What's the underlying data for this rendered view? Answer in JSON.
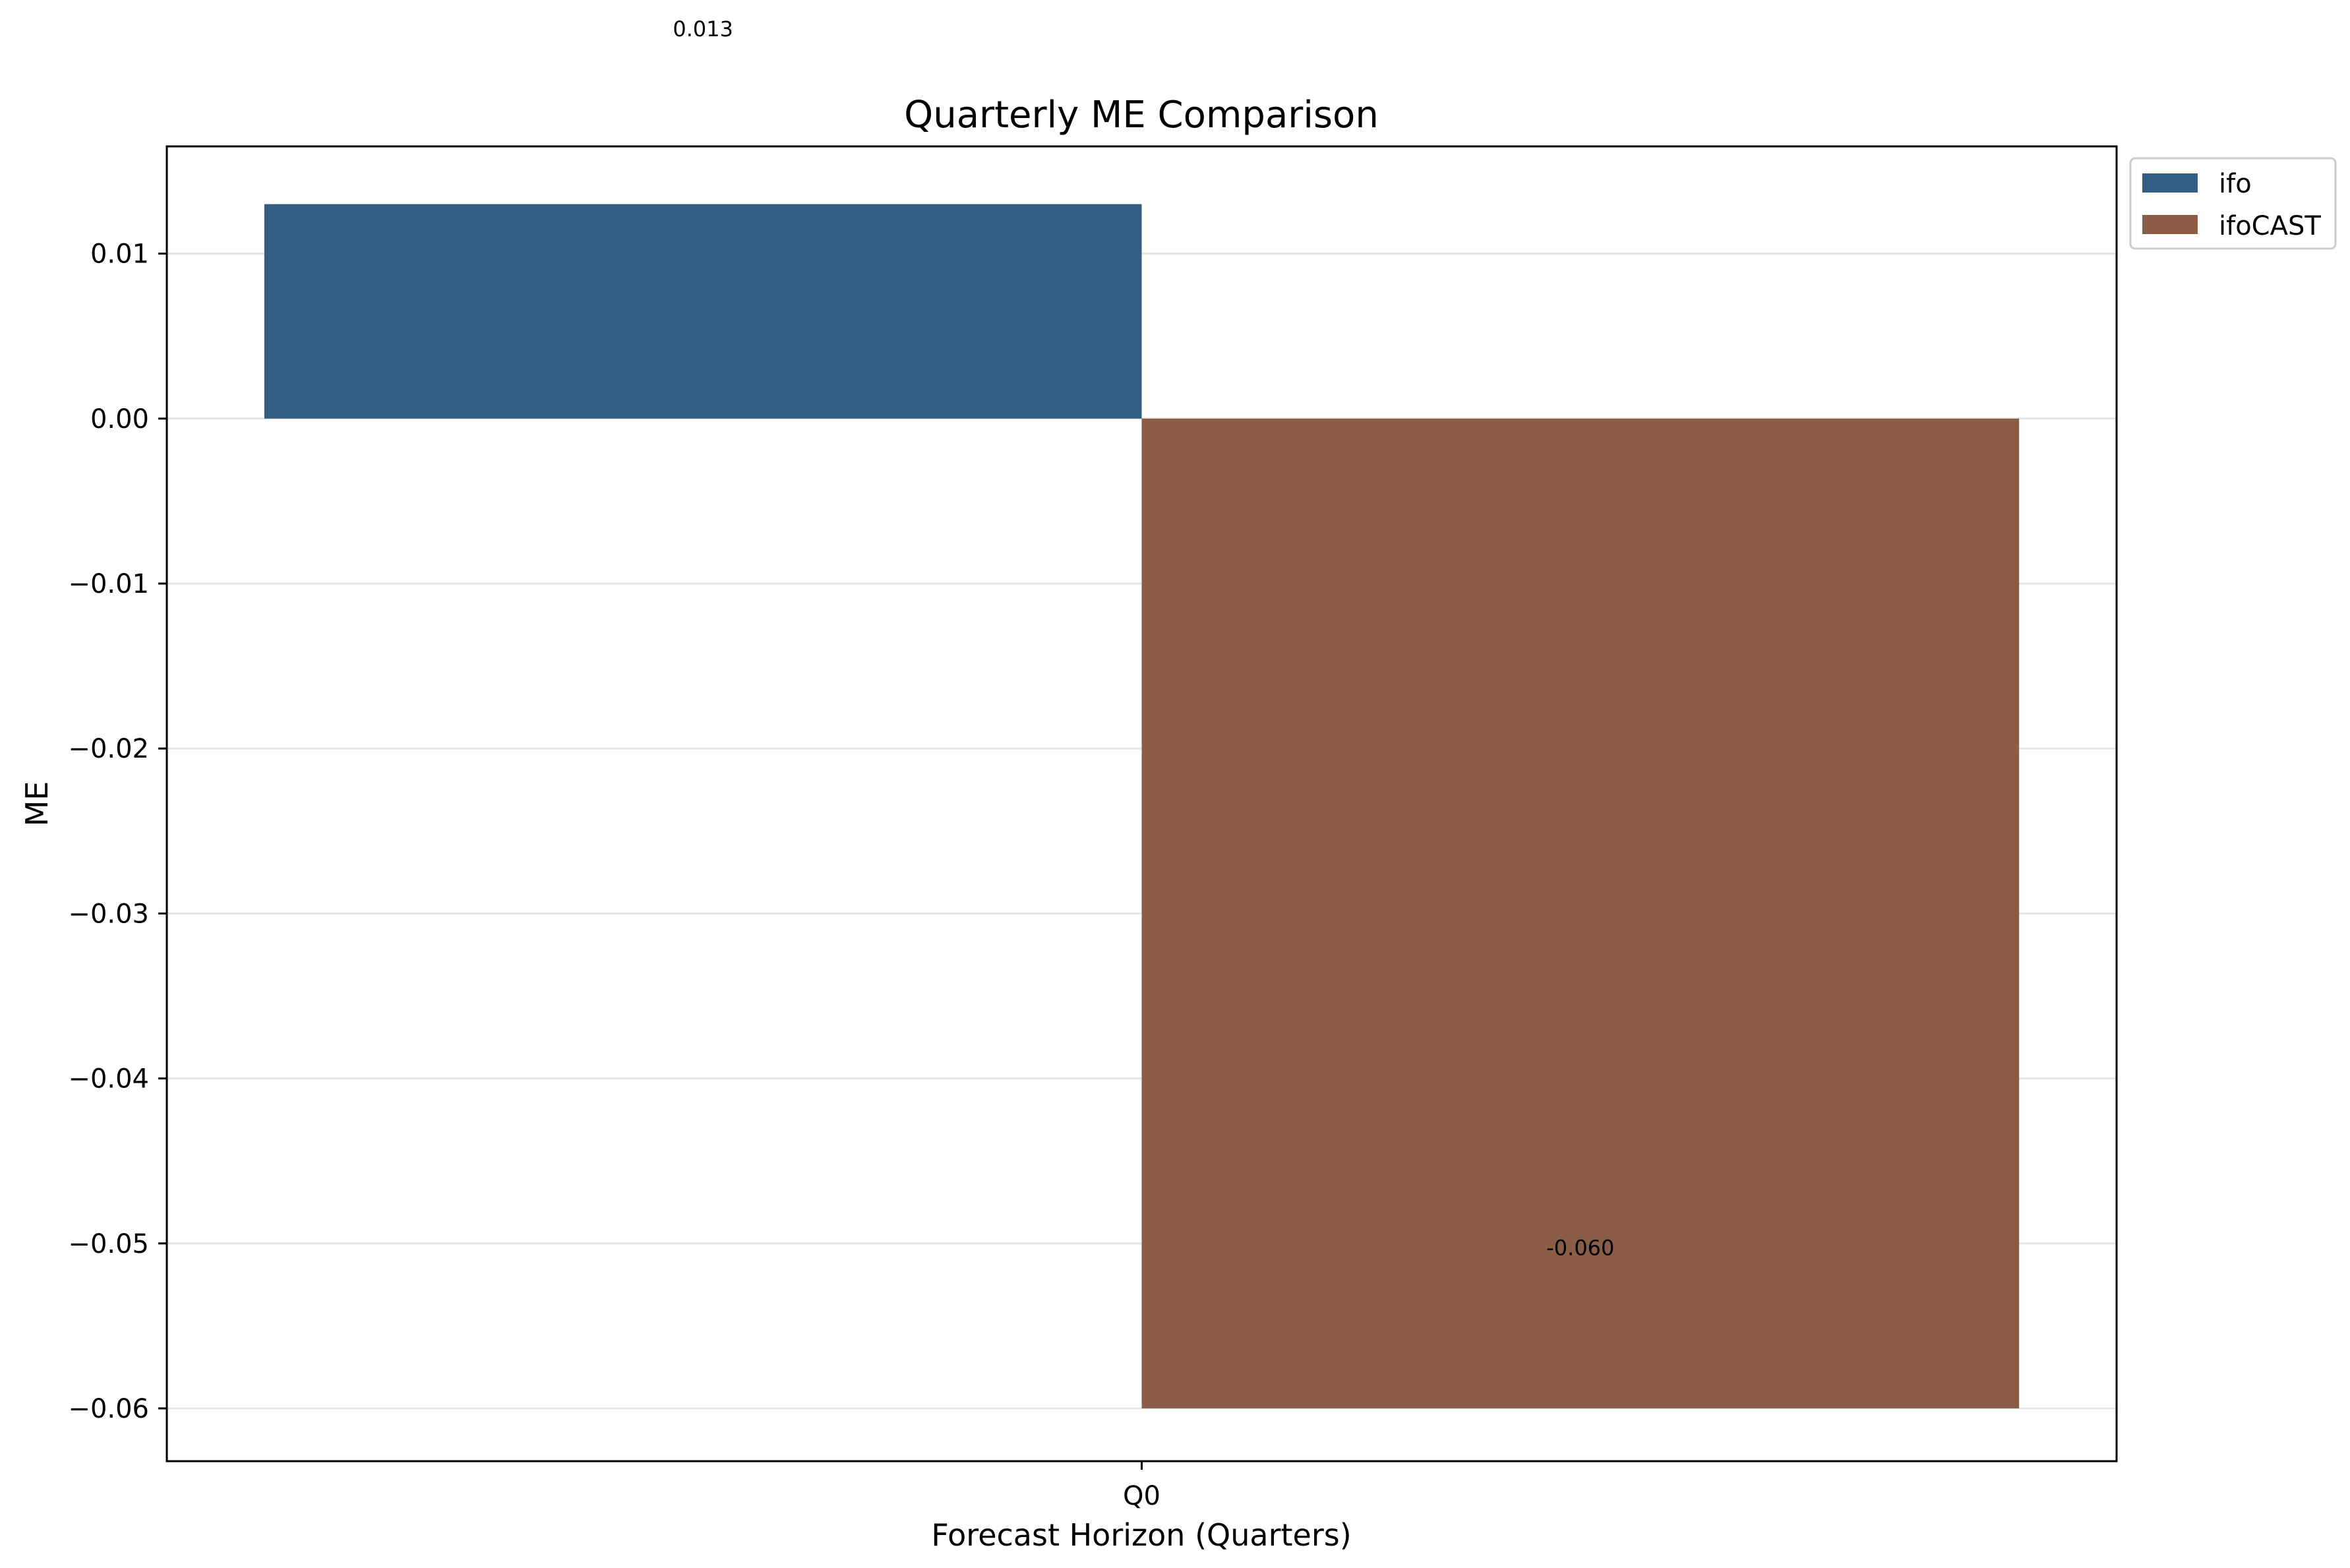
{
  "chart_data": {
    "type": "bar",
    "title": "Quarterly ME Comparison",
    "xlabel": "Forecast Horizon (Quarters)",
    "ylabel": "ME",
    "categories": [
      "Q0"
    ],
    "series": [
      {
        "name": "ifo",
        "values": [
          0.013
        ],
        "color": "#335d83",
        "data_label": "0.013"
      },
      {
        "name": "ifoCAST",
        "values": [
          -0.06
        ],
        "color": "#8b5d47",
        "data_label": "-0.060"
      }
    ],
    "ylim": [
      -0.0632,
      0.0165
    ],
    "yticks": [
      {
        "value": 0.01,
        "label": "0.01"
      },
      {
        "value": 0.0,
        "label": "0.00"
      },
      {
        "value": -0.01,
        "label": "−0.01"
      },
      {
        "value": -0.02,
        "label": "−0.02"
      },
      {
        "value": -0.03,
        "label": "−0.03"
      },
      {
        "value": -0.04,
        "label": "−0.04"
      },
      {
        "value": -0.05,
        "label": "−0.05"
      },
      {
        "value": -0.06,
        "label": "−0.06"
      }
    ],
    "grid": "y",
    "legend": "outside-top-right"
  }
}
